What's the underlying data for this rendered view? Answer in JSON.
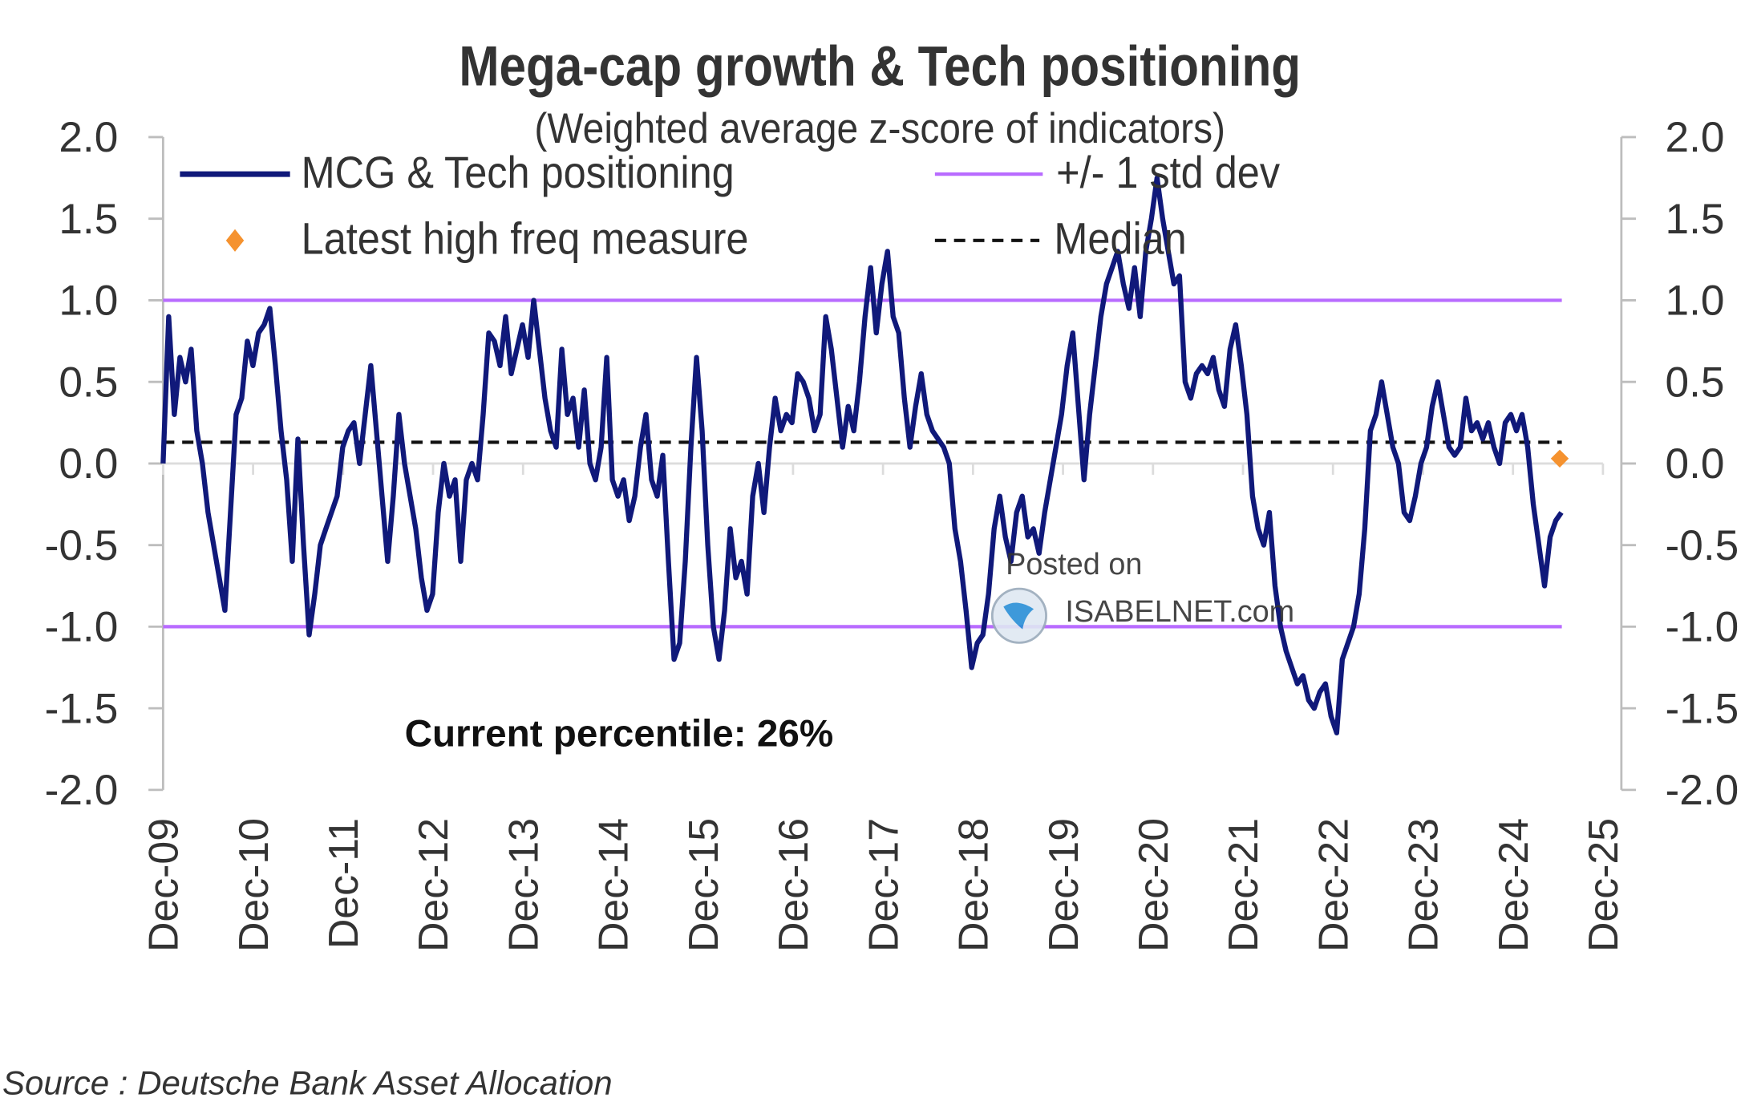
{
  "chart_data": {
    "type": "line",
    "title": "Mega-cap growth & Tech positioning",
    "subtitle": "(Weighted average z-score of indicators)",
    "ylim": [
      -2.0,
      2.0
    ],
    "yticks": [
      "2.0",
      "1.5",
      "1.0",
      "0.5",
      "0.0",
      "-0.5",
      "-1.0",
      "-1.5",
      "-2.0"
    ],
    "ytick_values": [
      2.0,
      1.5,
      1.0,
      0.5,
      0.0,
      -0.5,
      -1.0,
      -1.5,
      -2.0
    ],
    "xticks": [
      "Dec-09",
      "Dec-10",
      "Dec-11",
      "Dec-12",
      "Dec-13",
      "Dec-14",
      "Dec-15",
      "Dec-16",
      "Dec-17",
      "Dec-18",
      "Dec-19",
      "Dec-20",
      "Dec-21",
      "Dec-22",
      "Dec-23",
      "Dec-24",
      "Dec-25"
    ],
    "x_units": "years since Dec-09",
    "x_step_years": 0.0624,
    "legend": {
      "series": "MCG & Tech positioning",
      "std": "+/- 1 std dev",
      "latest": "Latest high freq measure",
      "median": "Median"
    },
    "std_band": [
      1.0,
      -1.0
    ],
    "median": 0.13,
    "latest_high_freq": {
      "x_years": 15.52,
      "y": 0.03
    },
    "series": [
      {
        "name": "MCG & Tech positioning",
        "values": [
          0.0,
          0.9,
          0.3,
          0.65,
          0.5,
          0.7,
          0.2,
          0.0,
          -0.3,
          -0.5,
          -0.7,
          -0.9,
          -0.3,
          0.3,
          0.4,
          0.75,
          0.6,
          0.8,
          0.85,
          0.95,
          0.6,
          0.2,
          -0.1,
          -0.6,
          0.15,
          -0.5,
          -1.05,
          -0.8,
          -0.5,
          -0.4,
          -0.3,
          -0.2,
          0.1,
          0.2,
          0.25,
          0.0,
          0.3,
          0.6,
          0.2,
          -0.2,
          -0.6,
          -0.2,
          0.3,
          0.0,
          -0.2,
          -0.4,
          -0.7,
          -0.9,
          -0.8,
          -0.3,
          0.0,
          -0.2,
          -0.1,
          -0.6,
          -0.1,
          0.0,
          -0.1,
          0.3,
          0.8,
          0.75,
          0.6,
          0.9,
          0.55,
          0.7,
          0.85,
          0.65,
          1.0,
          0.7,
          0.4,
          0.2,
          0.1,
          0.7,
          0.3,
          0.4,
          0.1,
          0.45,
          0.0,
          -0.1,
          0.1,
          0.65,
          -0.1,
          -0.2,
          -0.1,
          -0.35,
          -0.2,
          0.1,
          0.3,
          -0.1,
          -0.2,
          0.05,
          -0.6,
          -1.2,
          -1.1,
          -0.6,
          0.1,
          0.65,
          0.2,
          -0.5,
          -1.0,
          -1.2,
          -0.9,
          -0.4,
          -0.7,
          -0.6,
          -0.8,
          -0.2,
          0.0,
          -0.3,
          0.1,
          0.4,
          0.2,
          0.3,
          0.25,
          0.55,
          0.5,
          0.4,
          0.2,
          0.3,
          0.9,
          0.7,
          0.4,
          0.1,
          0.35,
          0.2,
          0.5,
          0.9,
          1.2,
          0.8,
          1.1,
          1.3,
          0.9,
          0.8,
          0.4,
          0.1,
          0.35,
          0.55,
          0.3,
          0.2,
          0.15,
          0.1,
          0.0,
          -0.4,
          -0.6,
          -0.9,
          -1.25,
          -1.1,
          -1.05,
          -0.8,
          -0.4,
          -0.2,
          -0.45,
          -0.6,
          -0.3,
          -0.2,
          -0.45,
          -0.4,
          -0.55,
          -0.3,
          -0.1,
          0.1,
          0.3,
          0.6,
          0.8,
          0.35,
          -0.1,
          0.3,
          0.6,
          0.9,
          1.1,
          1.2,
          1.3,
          1.1,
          0.95,
          1.2,
          0.9,
          1.3,
          1.5,
          1.75,
          1.5,
          1.3,
          1.1,
          1.15,
          0.5,
          0.4,
          0.55,
          0.6,
          0.55,
          0.65,
          0.45,
          0.35,
          0.7,
          0.85,
          0.6,
          0.3,
          -0.2,
          -0.4,
          -0.5,
          -0.3,
          -0.75,
          -1.0,
          -1.15,
          -1.25,
          -1.35,
          -1.3,
          -1.45,
          -1.5,
          -1.4,
          -1.35,
          -1.55,
          -1.65,
          -1.2,
          -1.1,
          -1.0,
          -0.8,
          -0.4,
          0.2,
          0.3,
          0.5,
          0.3,
          0.1,
          0.0,
          -0.3,
          -0.35,
          -0.2,
          0.0,
          0.1,
          0.35,
          0.5,
          0.3,
          0.1,
          0.05,
          0.1,
          0.4,
          0.2,
          0.25,
          0.15,
          0.25,
          0.1,
          0.0,
          0.25,
          0.3,
          0.2,
          0.3,
          0.1,
          -0.25,
          -0.5,
          -0.75,
          -0.45,
          -0.35,
          -0.3
        ]
      }
    ],
    "annotation": "Current percentile: 26%",
    "watermark": {
      "line1": "Posted on",
      "line2": "ISABELNET.com"
    },
    "source": "Source : Deutsche Bank Asset Allocation",
    "colors": {
      "series": "#10197a",
      "std": "#b86bff",
      "median": "#111111",
      "latest": "#f5922f",
      "axis": "#bdbdbd"
    }
  }
}
